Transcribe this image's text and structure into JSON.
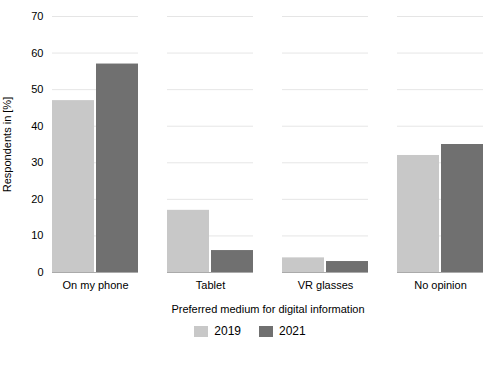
{
  "chart_data": {
    "type": "bar",
    "categories": [
      "On my phone",
      "Tablet",
      "VR glasses",
      "No opinion"
    ],
    "series": [
      {
        "name": "2019",
        "color": "#c8c8c8",
        "values": [
          47,
          17,
          4,
          32
        ]
      },
      {
        "name": "2021",
        "color": "#707070",
        "values": [
          57,
          6,
          3,
          35
        ]
      }
    ],
    "xlabel": "Preferred medium for digital information",
    "ylabel": "Respondents in [%]",
    "ylim": [
      0,
      70
    ],
    "yticks": [
      0,
      10,
      20,
      30,
      40,
      50,
      60,
      70
    ],
    "grid": true,
    "legend": "bottom"
  }
}
